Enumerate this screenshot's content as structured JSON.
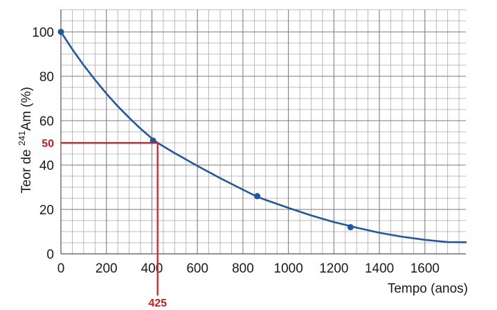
{
  "chart_data": {
    "type": "line",
    "xlabel": "Tempo (anos)",
    "ylabel_prefix": "Teor de ",
    "ylabel_superscript": "241",
    "ylabel_suffix": "Am (%)",
    "xlim": [
      0,
      1780
    ],
    "ylim": [
      0,
      110
    ],
    "x_ticks": [
      0,
      200,
      400,
      600,
      800,
      1000,
      1200,
      1400,
      1600
    ],
    "y_ticks": [
      0,
      20,
      40,
      60,
      80,
      100
    ],
    "grid": true,
    "series": [
      {
        "x": [
          0,
          50,
          100,
          150,
          200,
          250,
          300,
          350,
          400,
          425,
          500,
          600,
          700,
          800,
          863,
          900,
          1000,
          1100,
          1200,
          1273,
          1300,
          1400,
          1500,
          1600,
          1700,
          1780
        ],
        "values": [
          100,
          92.2,
          85.0,
          78.4,
          72.2,
          66.5,
          61.3,
          56.4,
          52.0,
          50.0,
          45.4,
          39.6,
          34.1,
          28.9,
          25.7,
          24.3,
          20.7,
          17.3,
          14.3,
          12.5,
          11.8,
          9.5,
          7.7,
          6.3,
          5.3,
          5.2
        ],
        "color": "#1f57a3"
      }
    ],
    "markers": [
      {
        "x": 0,
        "y": 100
      },
      {
        "x": 405,
        "y": 51
      },
      {
        "x": 863,
        "y": 26
      },
      {
        "x": 1273,
        "y": 12
      }
    ],
    "annotations": {
      "half_life_y": 50,
      "half_life_x": 425,
      "y_label": "50",
      "x_label": "425",
      "color": "#d7191c"
    }
  }
}
